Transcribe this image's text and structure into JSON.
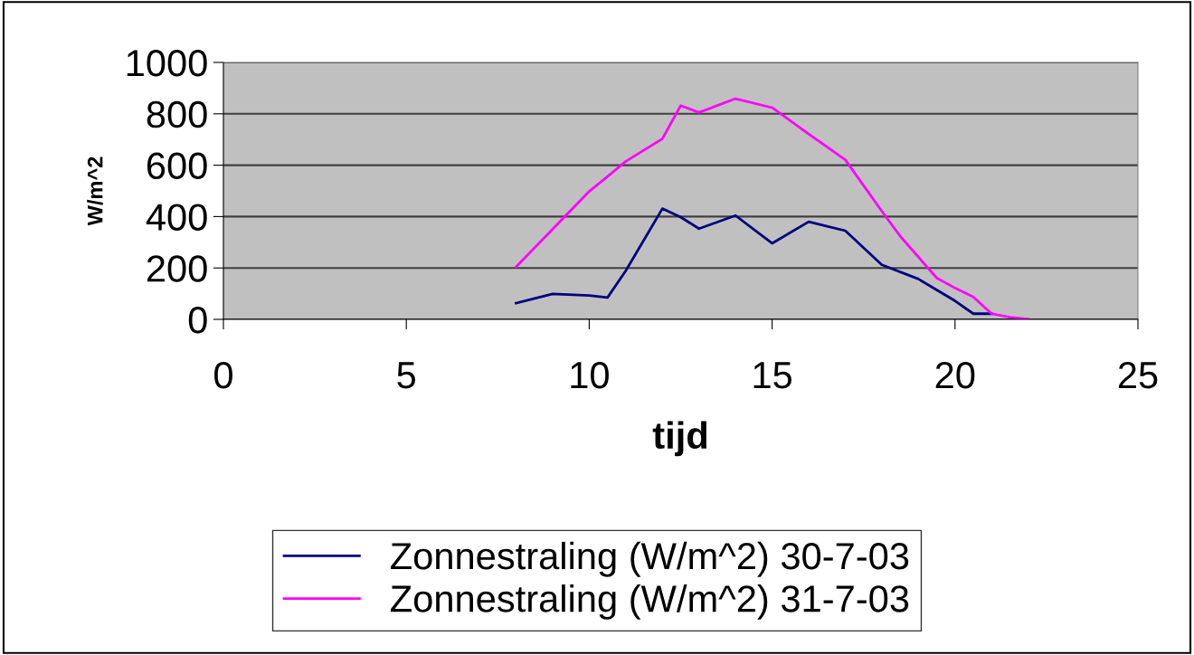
{
  "chart_data": {
    "type": "line",
    "xlabel": "tijd",
    "ylabel": "W/m^2",
    "xlim": [
      0,
      25
    ],
    "xticks": [
      0,
      5,
      10,
      15,
      20,
      25
    ],
    "ylim": [
      0,
      1000
    ],
    "yticks": [
      0,
      200,
      400,
      600,
      800,
      1000
    ],
    "grid": "y",
    "legend": "bottom",
    "marker": "none",
    "line_style": "solid",
    "series": [
      {
        "name": "Zonnestraling (W/m^2) 30-7-03",
        "color": "#000080",
        "x": [
          8,
          9,
          10,
          10.5,
          11,
          12,
          12.5,
          13,
          14,
          15,
          16,
          17,
          18,
          19,
          20,
          20.5,
          21
        ],
        "values": [
          63,
          99,
          93,
          85,
          189,
          431,
          398,
          353,
          404,
          296,
          380,
          345,
          212,
          157,
          72,
          22,
          22
        ]
      },
      {
        "name": "Zonnestraling (W/m^2) 31-7-03",
        "color": "#ff00ff",
        "x": [
          8,
          9,
          10,
          10.5,
          11,
          12,
          12.5,
          13,
          14,
          15,
          16,
          17,
          18,
          18.5,
          19.5,
          20,
          20.5,
          21,
          21.5,
          22
        ],
        "values": [
          204,
          351,
          498,
          556,
          615,
          703,
          832,
          805,
          859,
          824,
          721,
          621,
          421,
          324,
          161,
          122,
          87,
          22,
          8,
          1
        ]
      }
    ]
  }
}
